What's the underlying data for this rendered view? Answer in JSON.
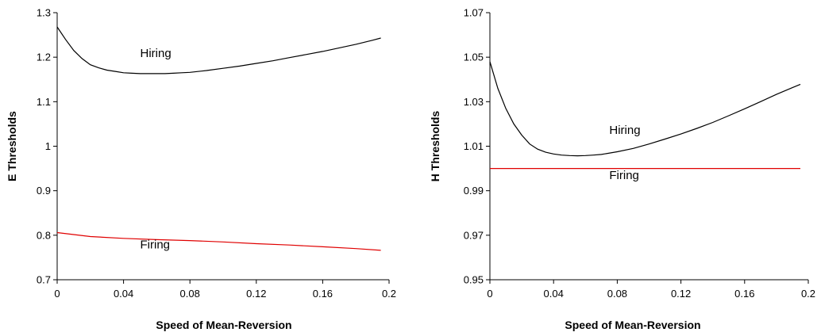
{
  "chart_data": [
    {
      "type": "line",
      "title": "",
      "xlabel": "Speed of Mean-Reversion",
      "ylabel": "E Thresholds",
      "xlim": [
        0,
        0.2
      ],
      "ylim": [
        0.7,
        1.3
      ],
      "xticks": [
        "0",
        "0.04",
        "0.08",
        "0.12",
        "0.16",
        "0.2"
      ],
      "yticks": [
        "0.7",
        "0.8",
        "0.9",
        "1",
        "1.1",
        "1.2",
        "1.3"
      ],
      "grid": false,
      "legend": "none",
      "annotations": [
        {
          "text": "Hiring",
          "x": 0.05,
          "y": 1.2
        },
        {
          "text": "Firing",
          "x": 0.05,
          "y": 0.77
        }
      ],
      "series": [
        {
          "color": "#000000",
          "x": [
            0,
            0.005,
            0.01,
            0.015,
            0.02,
            0.025,
            0.03,
            0.035,
            0.04,
            0.045,
            0.05,
            0.055,
            0.06,
            0.065,
            0.07,
            0.075,
            0.08,
            0.09,
            0.1,
            0.11,
            0.12,
            0.13,
            0.14,
            0.15,
            0.16,
            0.17,
            0.18,
            0.19,
            0.195
          ],
          "y": [
            1.268,
            1.24,
            1.215,
            1.197,
            1.183,
            1.176,
            1.171,
            1.168,
            1.165,
            1.164,
            1.163,
            1.163,
            1.163,
            1.163,
            1.164,
            1.165,
            1.166,
            1.17,
            1.175,
            1.18,
            1.186,
            1.192,
            1.199,
            1.206,
            1.213,
            1.221,
            1.229,
            1.238,
            1.243
          ]
        },
        {
          "color": "#e00000",
          "x": [
            0,
            0.02,
            0.04,
            0.06,
            0.08,
            0.1,
            0.12,
            0.14,
            0.16,
            0.18,
            0.195
          ],
          "y": [
            0.806,
            0.797,
            0.793,
            0.79,
            0.788,
            0.785,
            0.781,
            0.778,
            0.774,
            0.77,
            0.766
          ]
        }
      ]
    },
    {
      "type": "line",
      "title": "",
      "xlabel": "Speed of Mean-Reversion",
      "ylabel": "H Thresholds",
      "xlim": [
        0,
        0.2
      ],
      "ylim": [
        0.95,
        1.07
      ],
      "xticks": [
        "0",
        "0.04",
        "0.08",
        "0.12",
        "0.16",
        "0.2"
      ],
      "yticks": [
        "0.95",
        "0.97",
        "0.99",
        "1.01",
        "1.03",
        "1.05",
        "1.07"
      ],
      "grid": false,
      "legend": "none",
      "annotations": [
        {
          "text": "Hiring",
          "x": 0.075,
          "y": 1.0155
        },
        {
          "text": "Firing",
          "x": 0.075,
          "y": 0.9952
        }
      ],
      "series": [
        {
          "color": "#000000",
          "x": [
            0,
            0.005,
            0.01,
            0.015,
            0.02,
            0.025,
            0.03,
            0.035,
            0.04,
            0.045,
            0.05,
            0.055,
            0.06,
            0.065,
            0.07,
            0.08,
            0.09,
            0.1,
            0.11,
            0.12,
            0.13,
            0.14,
            0.15,
            0.16,
            0.17,
            0.18,
            0.19,
            0.195
          ],
          "y": [
            1.048,
            1.036,
            1.027,
            1.02,
            1.015,
            1.011,
            1.0087,
            1.0073,
            1.0065,
            1.006,
            1.0058,
            1.0057,
            1.0058,
            1.006,
            1.0063,
            1.0075,
            1.009,
            1.011,
            1.0132,
            1.0155,
            1.018,
            1.0207,
            1.0237,
            1.0268,
            1.03,
            1.0333,
            1.0363,
            1.0378
          ]
        },
        {
          "color": "#e00000",
          "x": [
            0,
            0.195
          ],
          "y": [
            1.0,
            1.0
          ]
        }
      ]
    }
  ]
}
